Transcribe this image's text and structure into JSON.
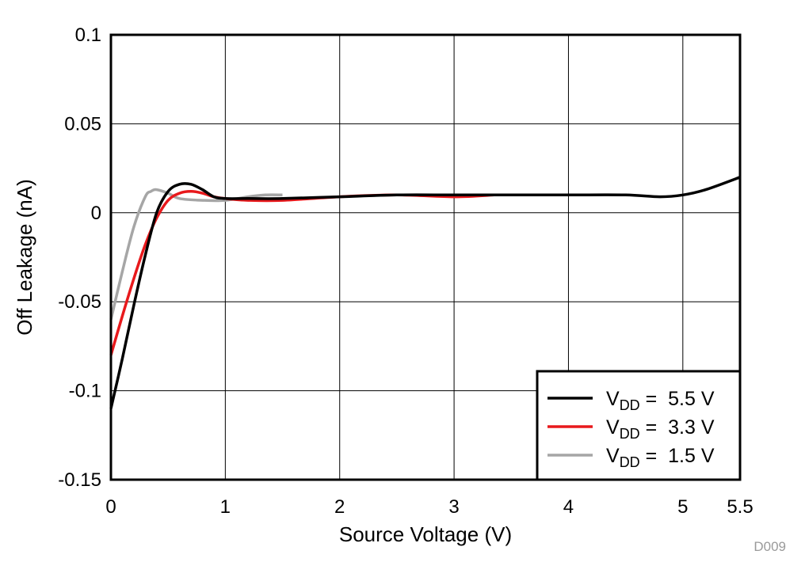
{
  "chart_data": {
    "type": "line",
    "title": "",
    "xlabel": "Source Voltage (V)",
    "ylabel": "Off Leakage (nA)",
    "xlim": [
      0,
      5.5
    ],
    "ylim": [
      -0.15,
      0.1
    ],
    "grid": true,
    "x_ticks": [
      0,
      1,
      2,
      3,
      4,
      5,
      5.5
    ],
    "x_tick_labels": [
      "0",
      "1",
      "2",
      "3",
      "4",
      "5",
      "5.5"
    ],
    "y_ticks": [
      0.1,
      0.05,
      0,
      -0.05,
      -0.1,
      -0.15
    ],
    "y_tick_labels": [
      "0.1",
      "0.05",
      "0",
      "-0.05",
      "-0.1",
      "-0.15"
    ],
    "legend_position": "bottom-right",
    "figure_id": "D009",
    "series": [
      {
        "name": "VDD = 5.5 V",
        "label_main": "V",
        "label_sub": "DD",
        "label_rest": " =  5.5 V",
        "color": "#000000",
        "x": [
          0,
          0.1,
          0.2,
          0.3,
          0.4,
          0.5,
          0.6,
          0.7,
          0.8,
          0.9,
          1.0,
          1.2,
          1.5,
          2.0,
          2.5,
          3.0,
          3.5,
          4.0,
          4.5,
          4.8,
          5.0,
          5.2,
          5.5
        ],
        "y": [
          -0.11,
          -0.082,
          -0.052,
          -0.024,
          0.0,
          0.012,
          0.016,
          0.016,
          0.013,
          0.009,
          0.008,
          0.008,
          0.008,
          0.009,
          0.01,
          0.01,
          0.01,
          0.01,
          0.01,
          0.009,
          0.01,
          0.013,
          0.02
        ]
      },
      {
        "name": "VDD = 3.3 V",
        "label_main": "V",
        "label_sub": "DD",
        "label_rest": " =  3.3 V",
        "color": "#e8191c",
        "x": [
          0,
          0.1,
          0.2,
          0.3,
          0.4,
          0.5,
          0.6,
          0.7,
          0.8,
          0.9,
          1.0,
          1.2,
          1.5,
          2.0,
          2.5,
          3.0,
          3.35
        ],
        "y": [
          -0.08,
          -0.058,
          -0.037,
          -0.018,
          -0.003,
          0.007,
          0.011,
          0.012,
          0.011,
          0.009,
          0.008,
          0.007,
          0.007,
          0.009,
          0.01,
          0.009,
          0.01
        ]
      },
      {
        "name": "VDD = 1.5 V",
        "label_main": "V",
        "label_sub": "DD",
        "label_rest": " =  1.5 V",
        "color": "#a6a6a6",
        "x": [
          0,
          0.1,
          0.2,
          0.3,
          0.35,
          0.4,
          0.5,
          0.6,
          0.8,
          1.0,
          1.2,
          1.35,
          1.5
        ],
        "y": [
          -0.06,
          -0.033,
          -0.008,
          0.009,
          0.012,
          0.013,
          0.011,
          0.008,
          0.007,
          0.007,
          0.009,
          0.01,
          0.01
        ]
      }
    ]
  }
}
